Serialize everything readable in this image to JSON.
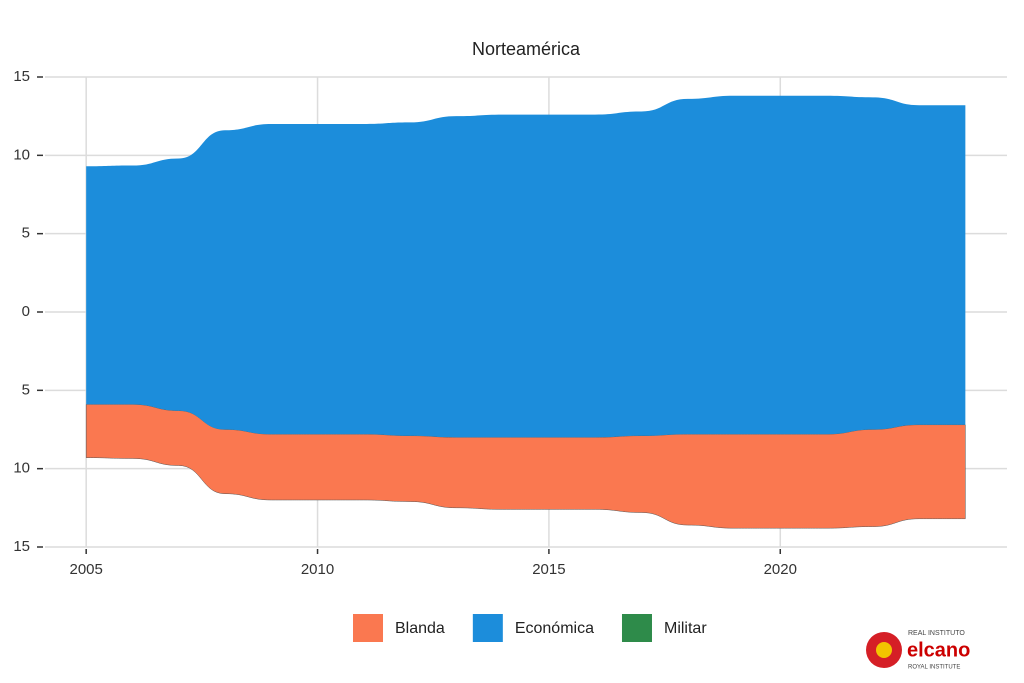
{
  "chart_data": {
    "type": "streamgraph",
    "title": "Norteamérica",
    "x": [
      2005,
      2006,
      2007,
      2008,
      2009,
      2010,
      2011,
      2012,
      2013,
      2014,
      2015,
      2016,
      2017,
      2018,
      2019,
      2020,
      2021,
      2022,
      2023,
      2024
    ],
    "series": [
      {
        "name": "Blanda",
        "color": "#fa7850",
        "values": [
          3.4,
          3.45,
          3.5,
          4.1,
          4.2,
          4.2,
          4.2,
          4.2,
          4.5,
          4.6,
          4.6,
          4.6,
          4.9,
          5.8,
          6.0,
          6.0,
          6.0,
          6.2,
          6.0,
          6.0
        ]
      },
      {
        "name": "Económica",
        "color": "#1c8ddb",
        "values": [
          15.2,
          15.25,
          16.1,
          19.1,
          19.8,
          19.8,
          19.8,
          20.0,
          20.5,
          20.6,
          20.6,
          20.6,
          20.7,
          21.4,
          21.6,
          21.6,
          21.6,
          21.2,
          20.4,
          20.4
        ]
      },
      {
        "name": "Militar",
        "color": "#2e8b4a",
        "values": [
          0,
          0,
          0,
          0,
          0,
          0,
          0,
          0,
          0,
          0,
          0,
          0,
          0,
          0,
          0,
          0,
          0,
          0,
          0,
          0
        ]
      }
    ],
    "xlim": [
      2004.11,
      2024.9
    ],
    "xticks": [
      2005,
      2010,
      2015,
      2020
    ],
    "ylim": [
      -15,
      15
    ],
    "yticks": [
      {
        "value": -15,
        "label": "15"
      },
      {
        "value": -10,
        "label": "10"
      },
      {
        "value": -5,
        "label": "5"
      },
      0,
      5,
      10,
      15
    ],
    "grid": true,
    "legend": "bottom"
  },
  "logo": {
    "line1": "REAL INSTITUTO",
    "line2": "elcano",
    "line3": "ROYAL INSTITUTE"
  }
}
